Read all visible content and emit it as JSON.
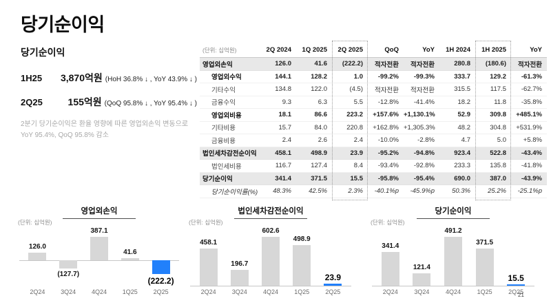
{
  "slide": {
    "title": "당기순이익",
    "page_number": "21"
  },
  "summary": {
    "heading": "당기순이익",
    "items": [
      {
        "period": "1H25",
        "value": "3,870억원",
        "detail": "(HoH 36.8% ↓ , YoY 43.9% ↓ )"
      },
      {
        "period": "2Q25",
        "value": "155억원",
        "detail": "(QoQ 95.8% ↓ , YoY 95.4% ↓ )"
      }
    ],
    "note_line1": "2분기 당기순이익은 환율 영향에 따른 영업외손익 변동으로",
    "note_line2": "YoY 95.4%, QoQ 95.8% 감소"
  },
  "table": {
    "unit_label": "(단위: 십억원)",
    "columns": [
      "2Q 2024",
      "1Q 2025",
      "2Q 2025",
      "QoQ",
      "YoY",
      "1H 2024",
      "1H 2025",
      "YoY"
    ],
    "dotted_column_indexes": [
      3,
      7
    ],
    "rows": [
      {
        "label": "영업외손익",
        "style": "highlight",
        "indent": 0,
        "values": [
          "126.0",
          "41.6",
          "(222.2)",
          "적자전환",
          "적자전환",
          "280.8",
          "(180.6)",
          "적자전환"
        ]
      },
      {
        "label": "영업외수익",
        "style": "bold",
        "indent": 1,
        "values": [
          "144.1",
          "128.2",
          "1.0",
          "-99.2%",
          "-99.3%",
          "333.7",
          "129.2",
          "-61.3%"
        ]
      },
      {
        "label": "기타수익",
        "style": "normal",
        "indent": 1,
        "values": [
          "134.8",
          "122.0",
          "(4.5)",
          "적자전환",
          "적자전환",
          "315.5",
          "117.5",
          "-62.7%"
        ]
      },
      {
        "label": "금융수익",
        "style": "normal",
        "indent": 1,
        "values": [
          "9.3",
          "6.3",
          "5.5",
          "-12.8%",
          "-41.4%",
          "18.2",
          "11.8",
          "-35.8%"
        ]
      },
      {
        "label": "영업외비용",
        "style": "bold",
        "indent": 1,
        "values": [
          "18.1",
          "86.6",
          "223.2",
          "+157.6%",
          "+1,130.1%",
          "52.9",
          "309.8",
          "+485.1%"
        ]
      },
      {
        "label": "기타비용",
        "style": "normal",
        "indent": 1,
        "values": [
          "15.7",
          "84.0",
          "220.8",
          "+162.8%",
          "+1,305.3%",
          "48.2",
          "304.8",
          "+531.9%"
        ]
      },
      {
        "label": "금융비용",
        "style": "normal",
        "indent": 1,
        "values": [
          "2.4",
          "2.6",
          "2.4",
          "-10.0%",
          "-2.8%",
          "4.7",
          "5.0",
          "+5.8%"
        ]
      },
      {
        "label": "법인세차감전순이익",
        "style": "highlight",
        "indent": 0,
        "values": [
          "458.1",
          "498.9",
          "23.9",
          "-95.2%",
          "-94.8%",
          "923.4",
          "522.8",
          "-43.4%"
        ]
      },
      {
        "label": "법인세비용",
        "style": "normal",
        "indent": 1,
        "values": [
          "116.7",
          "127.4",
          "8.4",
          "-93.4%",
          "-92.8%",
          "233.3",
          "135.8",
          "-41.8%"
        ]
      },
      {
        "label": "당기순이익",
        "style": "highlight",
        "indent": 0,
        "values": [
          "341.4",
          "371.5",
          "15.5",
          "-95.8%",
          "-95.4%",
          "690.0",
          "387.0",
          "-43.9%"
        ]
      },
      {
        "label": "당기순이익률(%)",
        "style": "italic",
        "indent": 1,
        "values": [
          "48.3%",
          "42.5%",
          "2.3%",
          "-40.1%p",
          "-45.9%p",
          "50.3%",
          "25.2%",
          "-25.1%p"
        ]
      }
    ]
  },
  "chart_data": [
    {
      "type": "bar",
      "title": "영업외손익",
      "unit_label": "(단위: 십억원)",
      "categories": [
        "2Q24",
        "3Q24",
        "4Q24",
        "1Q25",
        "2Q25"
      ],
      "values": [
        126.0,
        -127.7,
        387.1,
        41.6,
        -222.2
      ],
      "value_labels": [
        "126.0",
        "(127.7)",
        "387.1",
        "41.6",
        "(222.2)"
      ],
      "highlight_index": 4,
      "ylim": [
        -260,
        420
      ],
      "grid": false,
      "legend": "none"
    },
    {
      "type": "bar",
      "title": "법인세차감전순이익",
      "unit_label": "(단위: 십억원)",
      "categories": [
        "2Q24",
        "3Q24",
        "4Q24",
        "1Q25",
        "2Q25"
      ],
      "values": [
        458.1,
        196.7,
        602.6,
        498.9,
        23.9
      ],
      "value_labels": [
        "458.1",
        "196.7",
        "602.6",
        "498.9",
        "23.9"
      ],
      "highlight_index": 4,
      "ylim": [
        0,
        650
      ],
      "grid": false,
      "legend": "none"
    },
    {
      "type": "bar",
      "title": "당기순이익",
      "unit_label": "(단위: 십억원)",
      "categories": [
        "2Q24",
        "3Q24",
        "4Q24",
        "1Q25",
        "2Q25"
      ],
      "values": [
        341.4,
        121.4,
        491.2,
        371.5,
        15.5
      ],
      "value_labels": [
        "341.4",
        "121.4",
        "491.2",
        "371.5",
        "15.5"
      ],
      "highlight_index": 4,
      "ylim": [
        0,
        540
      ],
      "grid": false,
      "legend": "none"
    }
  ],
  "colors": {
    "accent_blue": "#2180fb",
    "bar_gray": "#d7d7d7",
    "row_highlight": "#e8e8e8",
    "note_gray": "#a8a8a8"
  }
}
